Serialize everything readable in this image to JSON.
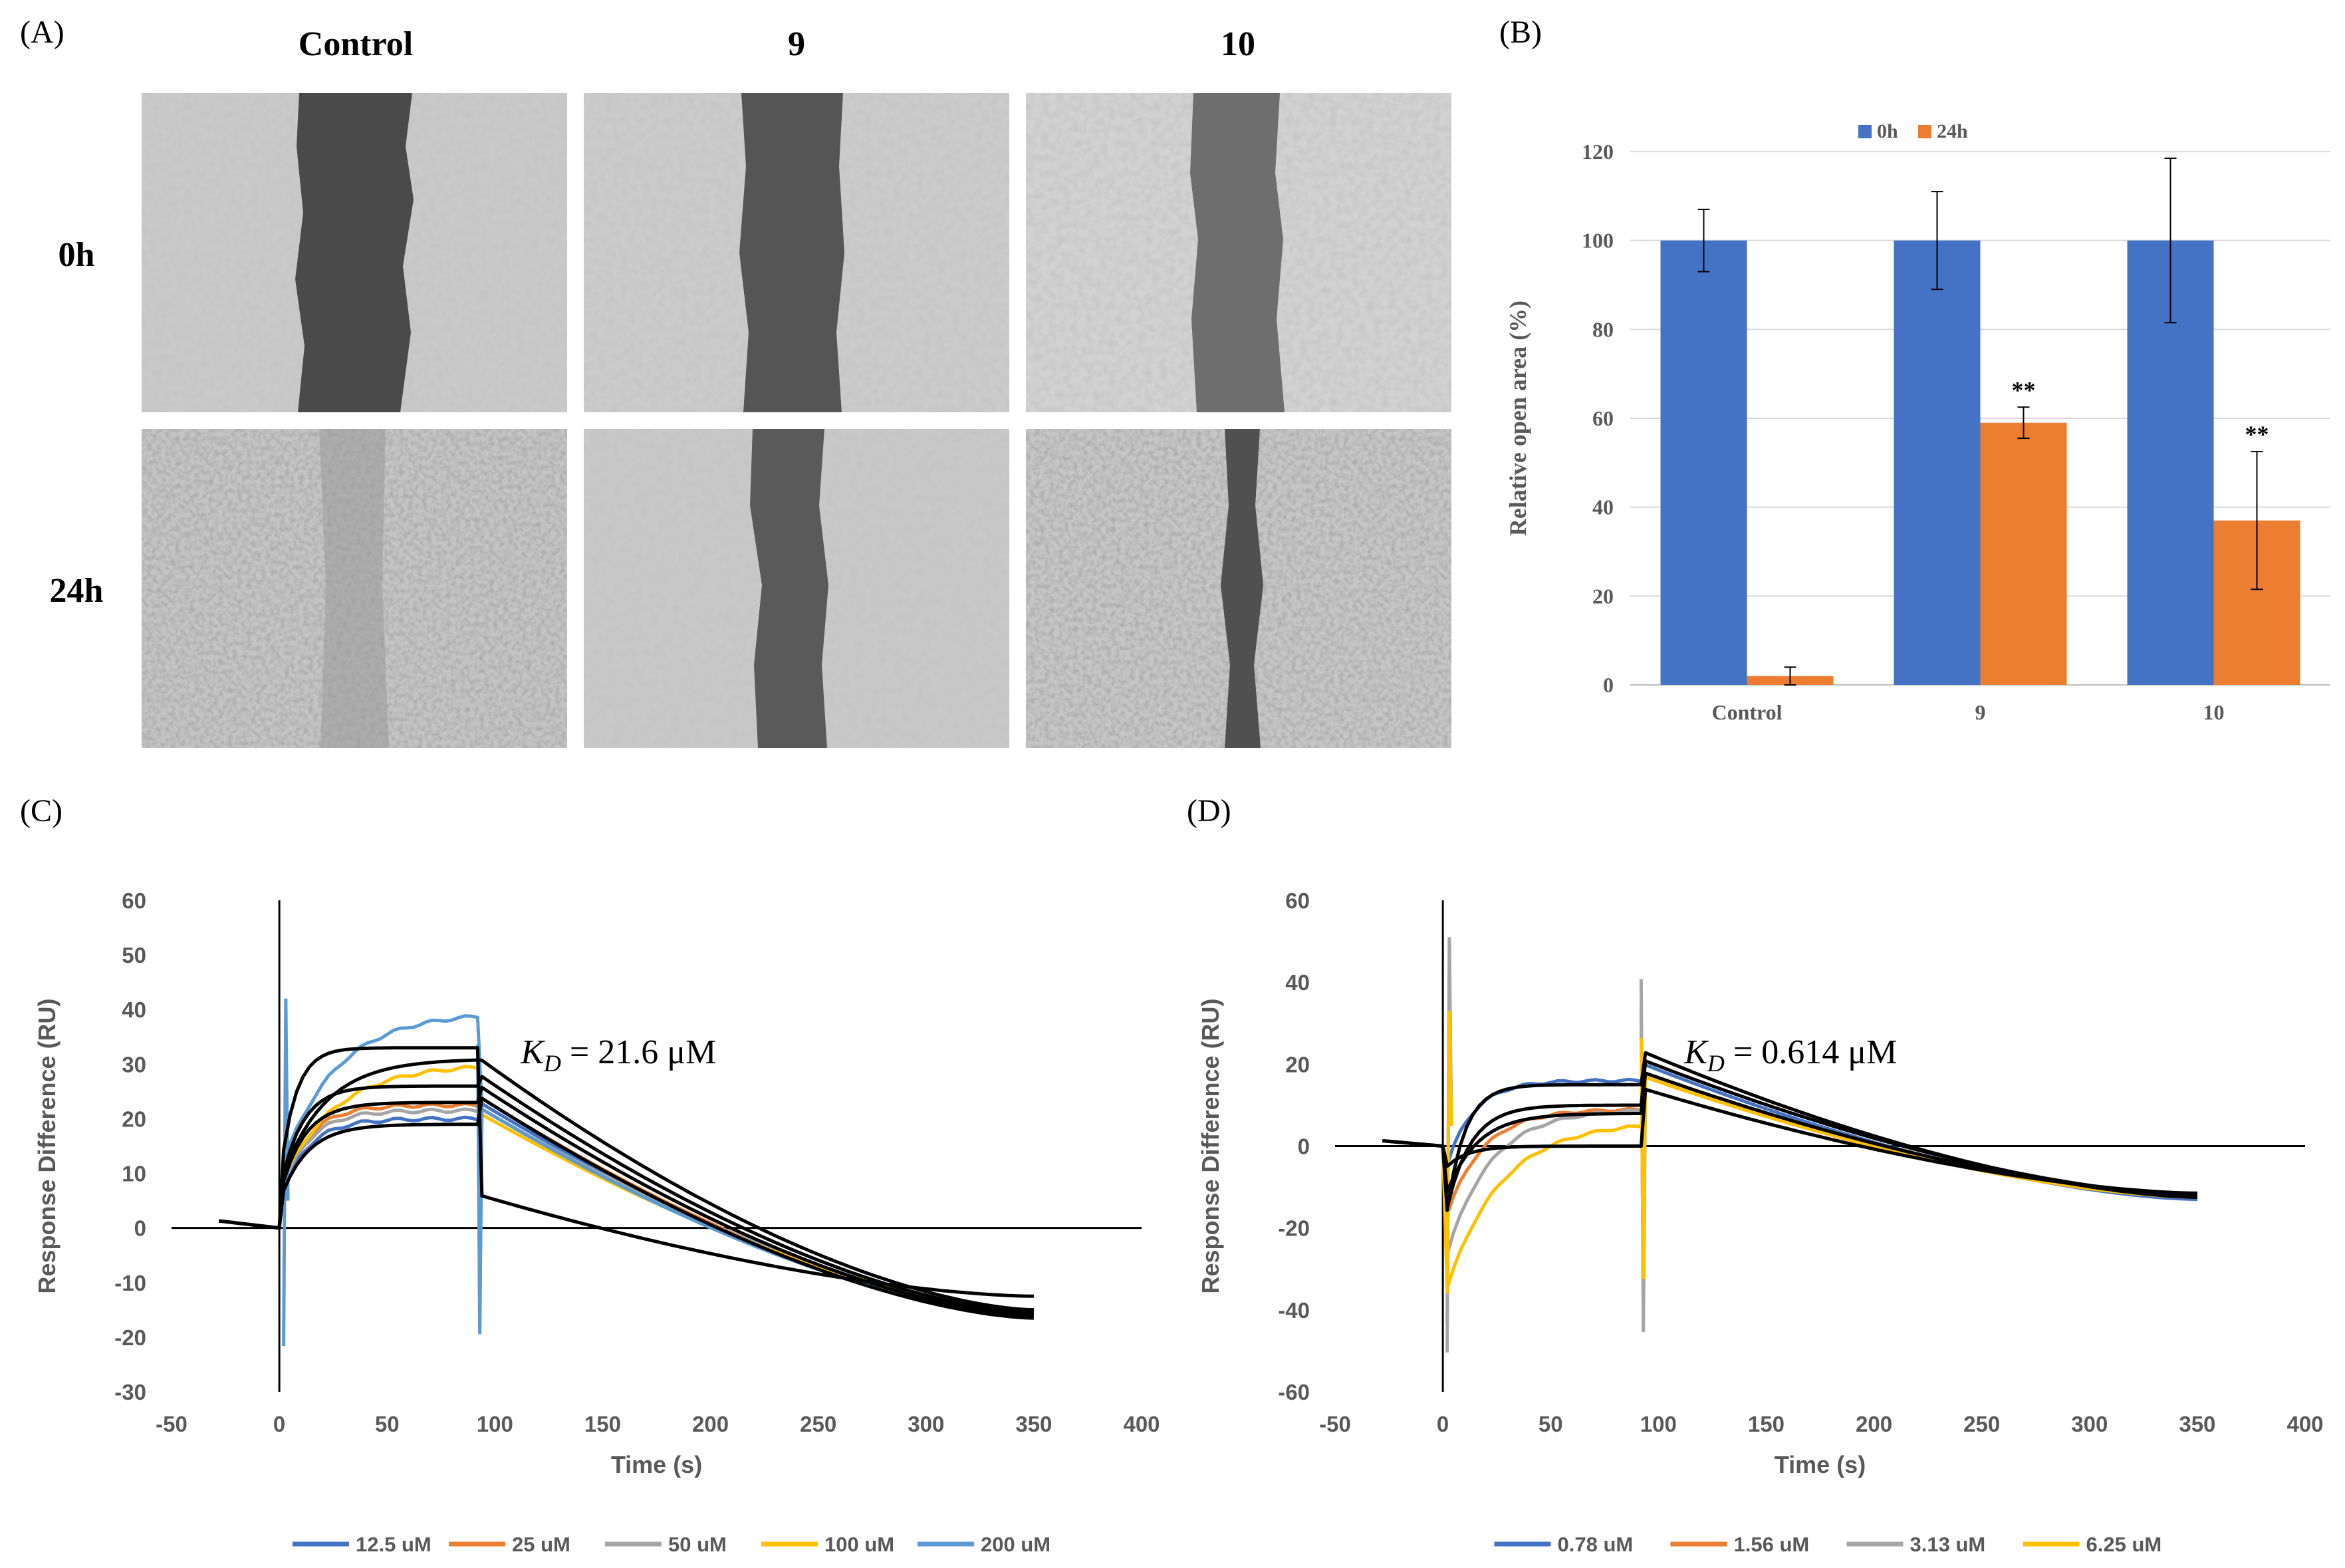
{
  "panel_labels": {
    "a": "(A)",
    "b": "(B)",
    "c": "(C)",
    "d": "(D)"
  },
  "micrographs": {
    "columns": [
      "Control",
      "9",
      "10"
    ],
    "rows": [
      "0h",
      "24h"
    ]
  },
  "colors": {
    "blue": "#4472c4",
    "orange": "#ed7d31",
    "gray": "#a5a5a5",
    "yellow": "#ffc000",
    "lightblue": "#5b9bd5",
    "fit": "#000000",
    "axis_text": "#595959",
    "grid": "#d9d9d9"
  },
  "chart_data": [
    {
      "type": "bar",
      "title": "",
      "categories": [
        "Control",
        "9",
        "10"
      ],
      "series": [
        {
          "name": "0h",
          "color": "#4472c4",
          "values": [
            100,
            100,
            100
          ],
          "errors": [
            7,
            11,
            18.5
          ]
        },
        {
          "name": "24h",
          "color": "#ed7d31",
          "values": [
            2,
            59,
            37
          ],
          "errors": [
            2,
            3.5,
            15.5
          ]
        }
      ],
      "annotations": [
        "",
        "**",
        "**"
      ],
      "ylabel": "Relative open area (%)",
      "xlabel": "",
      "ylim": [
        0,
        120
      ],
      "yticks": [
        0,
        20,
        40,
        60,
        80,
        100,
        120
      ],
      "grid": true,
      "legend": "top"
    },
    {
      "type": "line",
      "xlabel": "Time (s)",
      "ylabel": "Response Difference (RU)",
      "xlim": [
        -50,
        400
      ],
      "ylim": [
        -30,
        60
      ],
      "xticks": [
        -50,
        0,
        50,
        100,
        150,
        200,
        250,
        300,
        350,
        400
      ],
      "yticks": [
        -30,
        -20,
        -10,
        0,
        10,
        20,
        30,
        40,
        50,
        60
      ],
      "annotation": {
        "base": "K",
        "sub": "D",
        "rest": " = 21.6 μM"
      },
      "legend": "bottom",
      "injection_end": 93,
      "end_time": 350,
      "series": [
        {
          "name": "12.5 uM",
          "color": "#4472c4",
          "plateau": 20,
          "k_on": 0.08,
          "post": 23,
          "end": -15.5,
          "spike": 0
        },
        {
          "name": "25 uM",
          "color": "#ed7d31",
          "plateau": 22.5,
          "k_on": 0.08,
          "post": 24,
          "end": -16,
          "spike": 0
        },
        {
          "name": "50 uM",
          "color": "#a5a5a5",
          "plateau": 21.5,
          "k_on": 0.08,
          "post": 22,
          "end": -15,
          "spike": 0
        },
        {
          "name": "100 uM",
          "color": "#ffc000",
          "plateau": 30,
          "k_on": 0.04,
          "post": 21,
          "end": -15,
          "spike": 0
        },
        {
          "name": "200 uM",
          "color": "#5b9bd5",
          "plateau": 39.5,
          "k_on": 0.04,
          "post": 22,
          "end": -16,
          "spike": 1
        }
      ],
      "fits": [
        {
          "plateau": 19,
          "k_on": 0.08,
          "post": 24,
          "end": -16.5
        },
        {
          "plateau": 23,
          "k_on": 0.09,
          "post": 26,
          "end": -16
        },
        {
          "plateau": 26,
          "k_on": 0.1,
          "post": 28,
          "end": -15.5
        },
        {
          "plateau": 31,
          "k_on": 0.05,
          "post": 31,
          "end": -15
        },
        {
          "plateau": 33,
          "k_on": 0.14,
          "post": 6,
          "end": -12.5
        }
      ]
    },
    {
      "type": "line",
      "xlabel": "Time (s)",
      "ylabel": "Response Difference (RU)",
      "xlim": [
        -50,
        400
      ],
      "ylim": [
        -60,
        60
      ],
      "xticks": [
        -50,
        0,
        50,
        100,
        150,
        200,
        250,
        300,
        350,
        400
      ],
      "yticks": [
        -60,
        -40,
        -20,
        0,
        20,
        40,
        60
      ],
      "annotation": {
        "base": "K",
        "sub": "D",
        "rest": " = 0.614 μM"
      },
      "legend": "bottom",
      "injection_end": 93,
      "end_time": 350,
      "series": [
        {
          "name": "0.78 uM",
          "color": "#4472c4",
          "dip": -8,
          "plateau": 16,
          "k_on": 0.08,
          "post": 20,
          "end": -13,
          "spike": 0
        },
        {
          "name": "1.56 uM",
          "color": "#ed7d31",
          "dip": -20,
          "plateau": 9,
          "k_on": 0.06,
          "post": 18,
          "end": -12,
          "spike": 1
        },
        {
          "name": "3.13 uM",
          "color": "#a5a5a5",
          "dip": -30,
          "plateau": 9,
          "k_on": 0.05,
          "post": 17,
          "end": -12.5,
          "spike": 2
        },
        {
          "name": "6.25 uM",
          "color": "#ffc000",
          "dip": -38,
          "plateau": 6,
          "k_on": 0.04,
          "post": 17,
          "end": -12.5,
          "spike": 3
        }
      ],
      "fits": [
        {
          "dip": -24,
          "plateau": 15,
          "k_on": 0.12,
          "post": 23,
          "end": -12.5
        },
        {
          "dip": -20,
          "plateau": 10,
          "k_on": 0.09,
          "post": 21,
          "end": -12
        },
        {
          "dip": -14,
          "plateau": 8,
          "k_on": 0.07,
          "post": 18,
          "end": -12
        },
        {
          "dip": -6,
          "plateau": 0,
          "k_on": 0.1,
          "post": 14,
          "end": -11.5
        }
      ]
    }
  ]
}
